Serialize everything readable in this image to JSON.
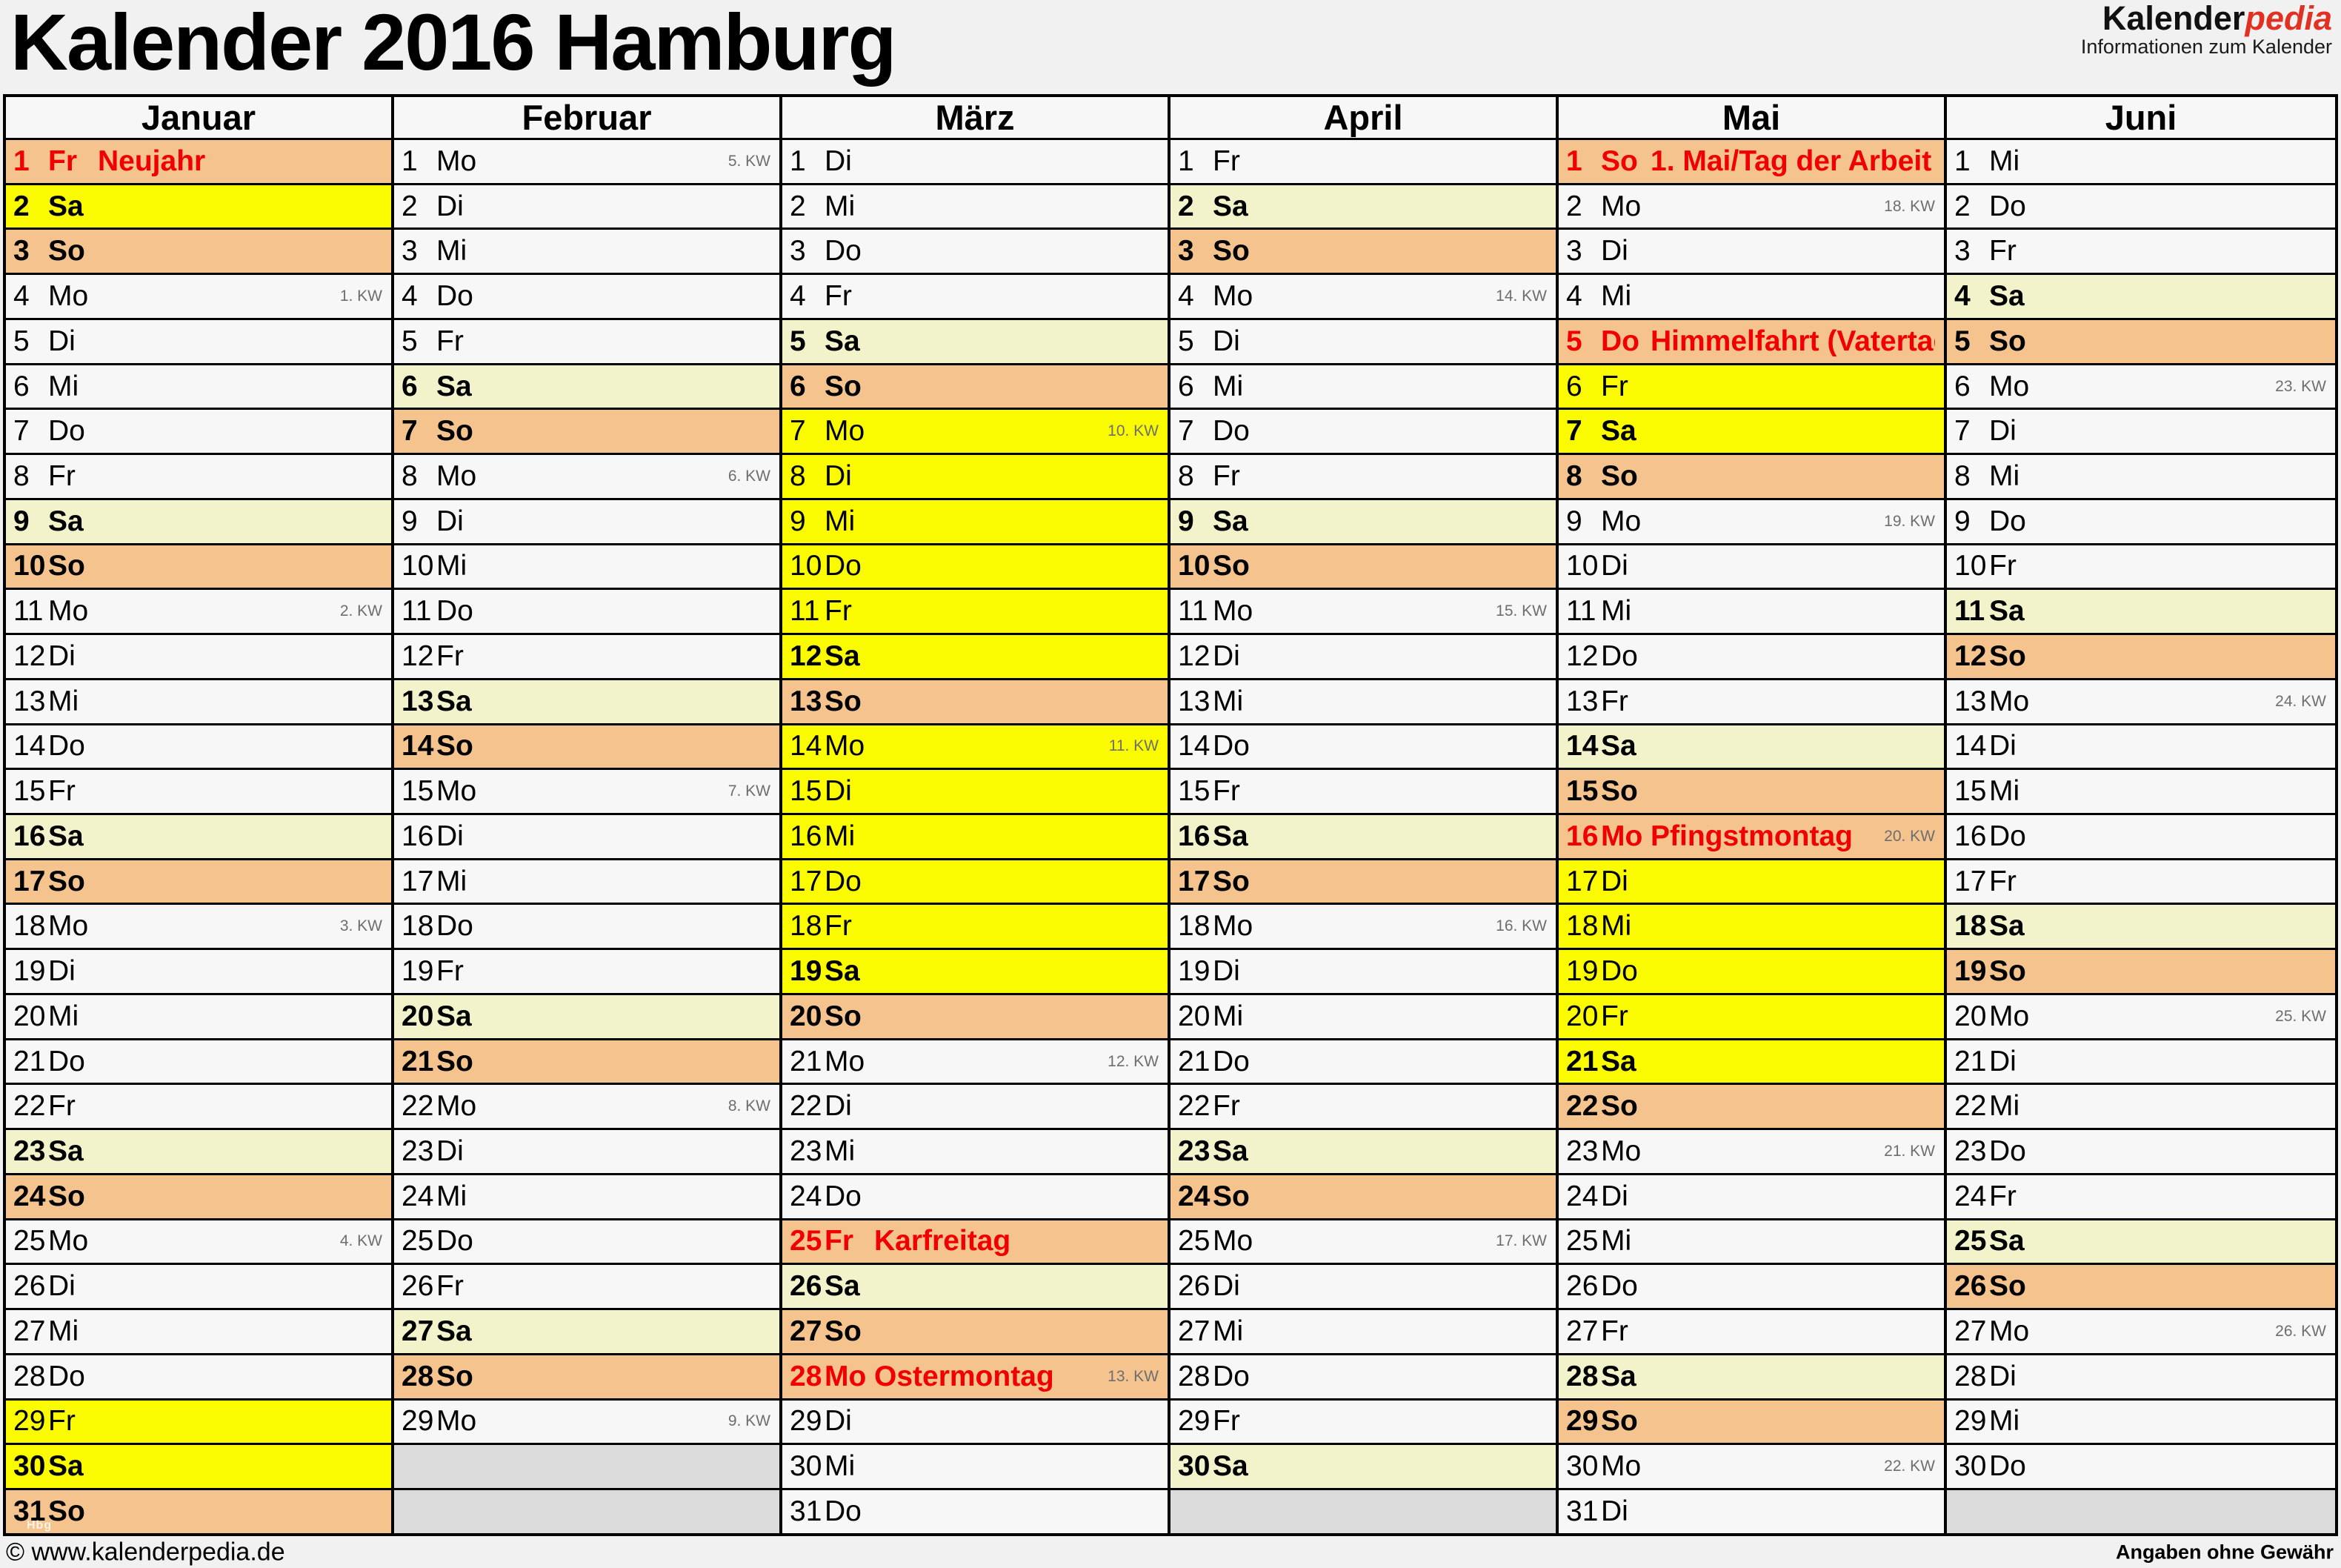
{
  "title": "Kalender 2016 Hamburg",
  "logo": {
    "brand_black": "Kalender",
    "brand_red": "pedia",
    "tagline": "Informationen zum Kalender"
  },
  "footer": {
    "copyright": "© www.kalenderpedia.de",
    "disclaimer": "Angaben ohne Gewähr"
  },
  "watermark": "Hbg",
  "colors": {
    "holiday_sunday_bg": "#f5c48e",
    "saturday_bg": "#f3f3cb",
    "vacation_bg": "#fbfb00",
    "weekday_bg": "#f7f7f7",
    "empty_bg": "#dcdcdc",
    "holiday_text": "#f00000",
    "logo_red": "#e03123",
    "week_number_text": "#6e6e6e"
  },
  "months": [
    {
      "name": "Januar",
      "days": [
        {
          "n": 1,
          "w": "Fr",
          "t": "ho",
          "h": "Neujahr"
        },
        {
          "n": 2,
          "w": "Sa",
          "t": "fe"
        },
        {
          "n": 3,
          "w": "So",
          "t": "so"
        },
        {
          "n": 4,
          "w": "Mo",
          "t": "wd",
          "kw": "1. KW"
        },
        {
          "n": 5,
          "w": "Di",
          "t": "wd"
        },
        {
          "n": 6,
          "w": "Mi",
          "t": "wd"
        },
        {
          "n": 7,
          "w": "Do",
          "t": "wd"
        },
        {
          "n": 8,
          "w": "Fr",
          "t": "wd"
        },
        {
          "n": 9,
          "w": "Sa",
          "t": "sa"
        },
        {
          "n": 10,
          "w": "So",
          "t": "so"
        },
        {
          "n": 11,
          "w": "Mo",
          "t": "wd",
          "kw": "2. KW"
        },
        {
          "n": 12,
          "w": "Di",
          "t": "wd"
        },
        {
          "n": 13,
          "w": "Mi",
          "t": "wd"
        },
        {
          "n": 14,
          "w": "Do",
          "t": "wd"
        },
        {
          "n": 15,
          "w": "Fr",
          "t": "wd"
        },
        {
          "n": 16,
          "w": "Sa",
          "t": "sa"
        },
        {
          "n": 17,
          "w": "So",
          "t": "so"
        },
        {
          "n": 18,
          "w": "Mo",
          "t": "wd",
          "kw": "3. KW"
        },
        {
          "n": 19,
          "w": "Di",
          "t": "wd"
        },
        {
          "n": 20,
          "w": "Mi",
          "t": "wd"
        },
        {
          "n": 21,
          "w": "Do",
          "t": "wd"
        },
        {
          "n": 22,
          "w": "Fr",
          "t": "wd"
        },
        {
          "n": 23,
          "w": "Sa",
          "t": "sa"
        },
        {
          "n": 24,
          "w": "So",
          "t": "so"
        },
        {
          "n": 25,
          "w": "Mo",
          "t": "wd",
          "kw": "4. KW"
        },
        {
          "n": 26,
          "w": "Di",
          "t": "wd"
        },
        {
          "n": 27,
          "w": "Mi",
          "t": "wd"
        },
        {
          "n": 28,
          "w": "Do",
          "t": "wd"
        },
        {
          "n": 29,
          "w": "Fr",
          "t": "fe"
        },
        {
          "n": 30,
          "w": "Sa",
          "t": "fe"
        },
        {
          "n": 31,
          "w": "So",
          "t": "so",
          "wm": true
        }
      ]
    },
    {
      "name": "Februar",
      "days": [
        {
          "n": 1,
          "w": "Mo",
          "t": "wd",
          "kw": "5. KW"
        },
        {
          "n": 2,
          "w": "Di",
          "t": "wd"
        },
        {
          "n": 3,
          "w": "Mi",
          "t": "wd"
        },
        {
          "n": 4,
          "w": "Do",
          "t": "wd"
        },
        {
          "n": 5,
          "w": "Fr",
          "t": "wd"
        },
        {
          "n": 6,
          "w": "Sa",
          "t": "sa"
        },
        {
          "n": 7,
          "w": "So",
          "t": "so"
        },
        {
          "n": 8,
          "w": "Mo",
          "t": "wd",
          "kw": "6. KW"
        },
        {
          "n": 9,
          "w": "Di",
          "t": "wd"
        },
        {
          "n": 10,
          "w": "Mi",
          "t": "wd"
        },
        {
          "n": 11,
          "w": "Do",
          "t": "wd"
        },
        {
          "n": 12,
          "w": "Fr",
          "t": "wd"
        },
        {
          "n": 13,
          "w": "Sa",
          "t": "sa"
        },
        {
          "n": 14,
          "w": "So",
          "t": "so"
        },
        {
          "n": 15,
          "w": "Mo",
          "t": "wd",
          "kw": "7. KW"
        },
        {
          "n": 16,
          "w": "Di",
          "t": "wd"
        },
        {
          "n": 17,
          "w": "Mi",
          "t": "wd"
        },
        {
          "n": 18,
          "w": "Do",
          "t": "wd"
        },
        {
          "n": 19,
          "w": "Fr",
          "t": "wd"
        },
        {
          "n": 20,
          "w": "Sa",
          "t": "sa"
        },
        {
          "n": 21,
          "w": "So",
          "t": "so"
        },
        {
          "n": 22,
          "w": "Mo",
          "t": "wd",
          "kw": "8. KW"
        },
        {
          "n": 23,
          "w": "Di",
          "t": "wd"
        },
        {
          "n": 24,
          "w": "Mi",
          "t": "wd"
        },
        {
          "n": 25,
          "w": "Do",
          "t": "wd"
        },
        {
          "n": 26,
          "w": "Fr",
          "t": "wd"
        },
        {
          "n": 27,
          "w": "Sa",
          "t": "sa"
        },
        {
          "n": 28,
          "w": "So",
          "t": "so"
        },
        {
          "n": 29,
          "w": "Mo",
          "t": "wd",
          "kw": "9. KW"
        },
        null,
        null
      ]
    },
    {
      "name": "März",
      "days": [
        {
          "n": 1,
          "w": "Di",
          "t": "wd"
        },
        {
          "n": 2,
          "w": "Mi",
          "t": "wd"
        },
        {
          "n": 3,
          "w": "Do",
          "t": "wd"
        },
        {
          "n": 4,
          "w": "Fr",
          "t": "wd"
        },
        {
          "n": 5,
          "w": "Sa",
          "t": "sa"
        },
        {
          "n": 6,
          "w": "So",
          "t": "so"
        },
        {
          "n": 7,
          "w": "Mo",
          "t": "fe",
          "kw": "10. KW"
        },
        {
          "n": 8,
          "w": "Di",
          "t": "fe"
        },
        {
          "n": 9,
          "w": "Mi",
          "t": "fe"
        },
        {
          "n": 10,
          "w": "Do",
          "t": "fe"
        },
        {
          "n": 11,
          "w": "Fr",
          "t": "fe"
        },
        {
          "n": 12,
          "w": "Sa",
          "t": "fe"
        },
        {
          "n": 13,
          "w": "So",
          "t": "so"
        },
        {
          "n": 14,
          "w": "Mo",
          "t": "fe",
          "kw": "11. KW"
        },
        {
          "n": 15,
          "w": "Di",
          "t": "fe"
        },
        {
          "n": 16,
          "w": "Mi",
          "t": "fe"
        },
        {
          "n": 17,
          "w": "Do",
          "t": "fe"
        },
        {
          "n": 18,
          "w": "Fr",
          "t": "fe"
        },
        {
          "n": 19,
          "w": "Sa",
          "t": "fe"
        },
        {
          "n": 20,
          "w": "So",
          "t": "so"
        },
        {
          "n": 21,
          "w": "Mo",
          "t": "wd",
          "kw": "12. KW"
        },
        {
          "n": 22,
          "w": "Di",
          "t": "wd"
        },
        {
          "n": 23,
          "w": "Mi",
          "t": "wd"
        },
        {
          "n": 24,
          "w": "Do",
          "t": "wd"
        },
        {
          "n": 25,
          "w": "Fr",
          "t": "ho",
          "h": "Karfreitag"
        },
        {
          "n": 26,
          "w": "Sa",
          "t": "sa"
        },
        {
          "n": 27,
          "w": "So",
          "t": "so"
        },
        {
          "n": 28,
          "w": "Mo",
          "t": "ho",
          "h": "Ostermontag",
          "kw": "13. KW"
        },
        {
          "n": 29,
          "w": "Di",
          "t": "wd"
        },
        {
          "n": 30,
          "w": "Mi",
          "t": "wd"
        },
        {
          "n": 31,
          "w": "Do",
          "t": "wd"
        }
      ]
    },
    {
      "name": "April",
      "days": [
        {
          "n": 1,
          "w": "Fr",
          "t": "wd"
        },
        {
          "n": 2,
          "w": "Sa",
          "t": "sa"
        },
        {
          "n": 3,
          "w": "So",
          "t": "so"
        },
        {
          "n": 4,
          "w": "Mo",
          "t": "wd",
          "kw": "14. KW"
        },
        {
          "n": 5,
          "w": "Di",
          "t": "wd"
        },
        {
          "n": 6,
          "w": "Mi",
          "t": "wd"
        },
        {
          "n": 7,
          "w": "Do",
          "t": "wd"
        },
        {
          "n": 8,
          "w": "Fr",
          "t": "wd"
        },
        {
          "n": 9,
          "w": "Sa",
          "t": "sa"
        },
        {
          "n": 10,
          "w": "So",
          "t": "so"
        },
        {
          "n": 11,
          "w": "Mo",
          "t": "wd",
          "kw": "15. KW"
        },
        {
          "n": 12,
          "w": "Di",
          "t": "wd"
        },
        {
          "n": 13,
          "w": "Mi",
          "t": "wd"
        },
        {
          "n": 14,
          "w": "Do",
          "t": "wd"
        },
        {
          "n": 15,
          "w": "Fr",
          "t": "wd"
        },
        {
          "n": 16,
          "w": "Sa",
          "t": "sa"
        },
        {
          "n": 17,
          "w": "So",
          "t": "so"
        },
        {
          "n": 18,
          "w": "Mo",
          "t": "wd",
          "kw": "16. KW"
        },
        {
          "n": 19,
          "w": "Di",
          "t": "wd"
        },
        {
          "n": 20,
          "w": "Mi",
          "t": "wd"
        },
        {
          "n": 21,
          "w": "Do",
          "t": "wd"
        },
        {
          "n": 22,
          "w": "Fr",
          "t": "wd"
        },
        {
          "n": 23,
          "w": "Sa",
          "t": "sa"
        },
        {
          "n": 24,
          "w": "So",
          "t": "so"
        },
        {
          "n": 25,
          "w": "Mo",
          "t": "wd",
          "kw": "17. KW"
        },
        {
          "n": 26,
          "w": "Di",
          "t": "wd"
        },
        {
          "n": 27,
          "w": "Mi",
          "t": "wd"
        },
        {
          "n": 28,
          "w": "Do",
          "t": "wd"
        },
        {
          "n": 29,
          "w": "Fr",
          "t": "wd"
        },
        {
          "n": 30,
          "w": "Sa",
          "t": "sa"
        },
        null
      ]
    },
    {
      "name": "Mai",
      "days": [
        {
          "n": 1,
          "w": "So",
          "t": "ho",
          "h": "1. Mai/Tag der Arbeit"
        },
        {
          "n": 2,
          "w": "Mo",
          "t": "wd",
          "kw": "18. KW"
        },
        {
          "n": 3,
          "w": "Di",
          "t": "wd"
        },
        {
          "n": 4,
          "w": "Mi",
          "t": "wd"
        },
        {
          "n": 5,
          "w": "Do",
          "t": "ho",
          "h": "Himmelfahrt (Vatertag)"
        },
        {
          "n": 6,
          "w": "Fr",
          "t": "fe"
        },
        {
          "n": 7,
          "w": "Sa",
          "t": "fe"
        },
        {
          "n": 8,
          "w": "So",
          "t": "so"
        },
        {
          "n": 9,
          "w": "Mo",
          "t": "wd",
          "kw": "19. KW"
        },
        {
          "n": 10,
          "w": "Di",
          "t": "wd"
        },
        {
          "n": 11,
          "w": "Mi",
          "t": "wd"
        },
        {
          "n": 12,
          "w": "Do",
          "t": "wd"
        },
        {
          "n": 13,
          "w": "Fr",
          "t": "wd"
        },
        {
          "n": 14,
          "w": "Sa",
          "t": "sa"
        },
        {
          "n": 15,
          "w": "So",
          "t": "so"
        },
        {
          "n": 16,
          "w": "Mo",
          "t": "ho",
          "h": "Pfingstmontag",
          "kw": "20. KW"
        },
        {
          "n": 17,
          "w": "Di",
          "t": "fe"
        },
        {
          "n": 18,
          "w": "Mi",
          "t": "fe"
        },
        {
          "n": 19,
          "w": "Do",
          "t": "fe"
        },
        {
          "n": 20,
          "w": "Fr",
          "t": "fe"
        },
        {
          "n": 21,
          "w": "Sa",
          "t": "fe"
        },
        {
          "n": 22,
          "w": "So",
          "t": "so"
        },
        {
          "n": 23,
          "w": "Mo",
          "t": "wd",
          "kw": "21. KW"
        },
        {
          "n": 24,
          "w": "Di",
          "t": "wd"
        },
        {
          "n": 25,
          "w": "Mi",
          "t": "wd"
        },
        {
          "n": 26,
          "w": "Do",
          "t": "wd"
        },
        {
          "n": 27,
          "w": "Fr",
          "t": "wd"
        },
        {
          "n": 28,
          "w": "Sa",
          "t": "sa"
        },
        {
          "n": 29,
          "w": "So",
          "t": "so"
        },
        {
          "n": 30,
          "w": "Mo",
          "t": "wd",
          "kw": "22. KW"
        },
        {
          "n": 31,
          "w": "Di",
          "t": "wd"
        }
      ]
    },
    {
      "name": "Juni",
      "days": [
        {
          "n": 1,
          "w": "Mi",
          "t": "wd"
        },
        {
          "n": 2,
          "w": "Do",
          "t": "wd"
        },
        {
          "n": 3,
          "w": "Fr",
          "t": "wd"
        },
        {
          "n": 4,
          "w": "Sa",
          "t": "sa"
        },
        {
          "n": 5,
          "w": "So",
          "t": "so"
        },
        {
          "n": 6,
          "w": "Mo",
          "t": "wd",
          "kw": "23. KW"
        },
        {
          "n": 7,
          "w": "Di",
          "t": "wd"
        },
        {
          "n": 8,
          "w": "Mi",
          "t": "wd"
        },
        {
          "n": 9,
          "w": "Do",
          "t": "wd"
        },
        {
          "n": 10,
          "w": "Fr",
          "t": "wd"
        },
        {
          "n": 11,
          "w": "Sa",
          "t": "sa"
        },
        {
          "n": 12,
          "w": "So",
          "t": "so"
        },
        {
          "n": 13,
          "w": "Mo",
          "t": "wd",
          "kw": "24. KW"
        },
        {
          "n": 14,
          "w": "Di",
          "t": "wd"
        },
        {
          "n": 15,
          "w": "Mi",
          "t": "wd"
        },
        {
          "n": 16,
          "w": "Do",
          "t": "wd"
        },
        {
          "n": 17,
          "w": "Fr",
          "t": "wd"
        },
        {
          "n": 18,
          "w": "Sa",
          "t": "sa"
        },
        {
          "n": 19,
          "w": "So",
          "t": "so"
        },
        {
          "n": 20,
          "w": "Mo",
          "t": "wd",
          "kw": "25. KW"
        },
        {
          "n": 21,
          "w": "Di",
          "t": "wd"
        },
        {
          "n": 22,
          "w": "Mi",
          "t": "wd"
        },
        {
          "n": 23,
          "w": "Do",
          "t": "wd"
        },
        {
          "n": 24,
          "w": "Fr",
          "t": "wd"
        },
        {
          "n": 25,
          "w": "Sa",
          "t": "sa"
        },
        {
          "n": 26,
          "w": "So",
          "t": "so"
        },
        {
          "n": 27,
          "w": "Mo",
          "t": "wd",
          "kw": "26. KW"
        },
        {
          "n": 28,
          "w": "Di",
          "t": "wd"
        },
        {
          "n": 29,
          "w": "Mi",
          "t": "wd"
        },
        {
          "n": 30,
          "w": "Do",
          "t": "wd"
        },
        null
      ]
    }
  ]
}
